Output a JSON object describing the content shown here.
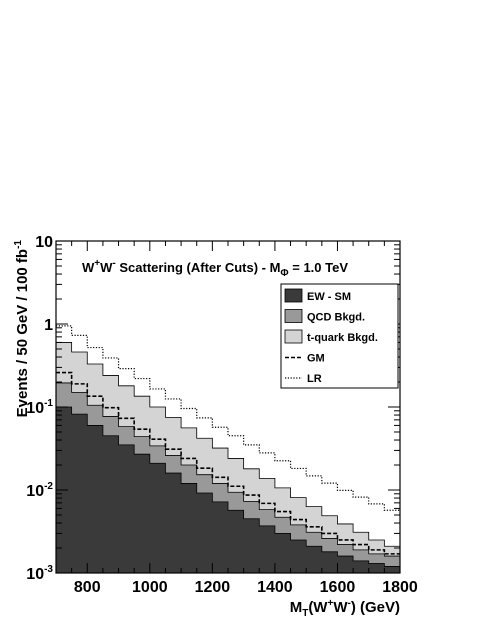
{
  "chart_data": {
    "type": "area",
    "title": {
      "parts": [
        "W",
        "+",
        "W",
        "-",
        " Scattering (After Cuts) - M",
        "Φ",
        " = 1.0 TeV"
      ]
    },
    "xlabel": {
      "parts": [
        "M",
        "T",
        "(W",
        "+",
        "W",
        "-",
        ") (GeV)"
      ]
    },
    "ylabel": {
      "parts": [
        "Events / 50 GeV / 100 fb",
        "-1"
      ]
    },
    "xlim": [
      700,
      1800
    ],
    "ylim": [
      0.001,
      10
    ],
    "yscale": "log",
    "x_ticks": [
      "800",
      "1000",
      "1200",
      "1400",
      "1600",
      "1800"
    ],
    "y_ticks": [
      {
        "base": "10",
        "exp": "-3"
      },
      {
        "base": "10",
        "exp": "-2"
      },
      {
        "base": "10",
        "exp": "-1"
      },
      {
        "base": "1",
        "exp": ""
      },
      {
        "base": "10",
        "exp": ""
      }
    ],
    "bin_edges": [
      700,
      750,
      800,
      850,
      900,
      950,
      1000,
      1050,
      1100,
      1150,
      1200,
      1250,
      1300,
      1350,
      1400,
      1450,
      1500,
      1550,
      1600,
      1650,
      1700,
      1750,
      1800
    ],
    "stacked_series": [
      {
        "name": "EW - SM",
        "color": "#3a3a3a",
        "values": [
          0.1,
          0.082,
          0.06,
          0.045,
          0.035,
          0.027,
          0.021,
          0.016,
          0.012,
          0.0092,
          0.0072,
          0.0057,
          0.0045,
          0.0037,
          0.003,
          0.0025,
          0.0021,
          0.0018,
          0.0016,
          0.0014,
          0.0013,
          0.0012
        ]
      },
      {
        "name": "QCD Bkgd.",
        "color": "#999999",
        "values": [
          0.195,
          0.15,
          0.105,
          0.077,
          0.058,
          0.044,
          0.034,
          0.026,
          0.02,
          0.0153,
          0.012,
          0.0094,
          0.0073,
          0.0058,
          0.0047,
          0.0038,
          0.0031,
          0.0026,
          0.0022,
          0.0019,
          0.0017,
          0.0016
        ]
      },
      {
        "name": "t-quark Bkgd.",
        "color": "#d4d4d4",
        "values": [
          0.6,
          0.46,
          0.33,
          0.24,
          0.18,
          0.135,
          0.1,
          0.075,
          0.056,
          0.042,
          0.032,
          0.024,
          0.018,
          0.0138,
          0.0106,
          0.0081,
          0.0063,
          0.0049,
          0.0039,
          0.0031,
          0.0025,
          0.0021
        ]
      }
    ],
    "line_series": [
      {
        "name": "GM",
        "style": "dashed",
        "values": [
          0.26,
          0.19,
          0.135,
          0.098,
          0.073,
          0.054,
          0.041,
          0.031,
          0.024,
          0.0183,
          0.0142,
          0.0111,
          0.0087,
          0.0069,
          0.0055,
          0.0044,
          0.0036,
          0.003,
          0.0025,
          0.0022,
          0.0019,
          0.0017
        ]
      },
      {
        "name": "LR",
        "style": "dotted",
        "values": [
          0.95,
          0.73,
          0.52,
          0.39,
          0.29,
          0.22,
          0.165,
          0.125,
          0.096,
          0.074,
          0.057,
          0.045,
          0.035,
          0.028,
          0.0225,
          0.0182,
          0.0148,
          0.0121,
          0.0099,
          0.0082,
          0.0068,
          0.0057
        ]
      }
    ],
    "legend": {
      "placement": "top-right",
      "entries": [
        {
          "label": "EW - SM",
          "kind": "fill",
          "color": "#3a3a3a"
        },
        {
          "label": "QCD Bkgd.",
          "kind": "fill",
          "color": "#999999"
        },
        {
          "label": "t-quark Bkgd.",
          "kind": "fill",
          "color": "#d4d4d4"
        },
        {
          "label": "GM",
          "kind": "dashed"
        },
        {
          "label": "LR",
          "kind": "dotted"
        }
      ]
    },
    "grid": false
  }
}
